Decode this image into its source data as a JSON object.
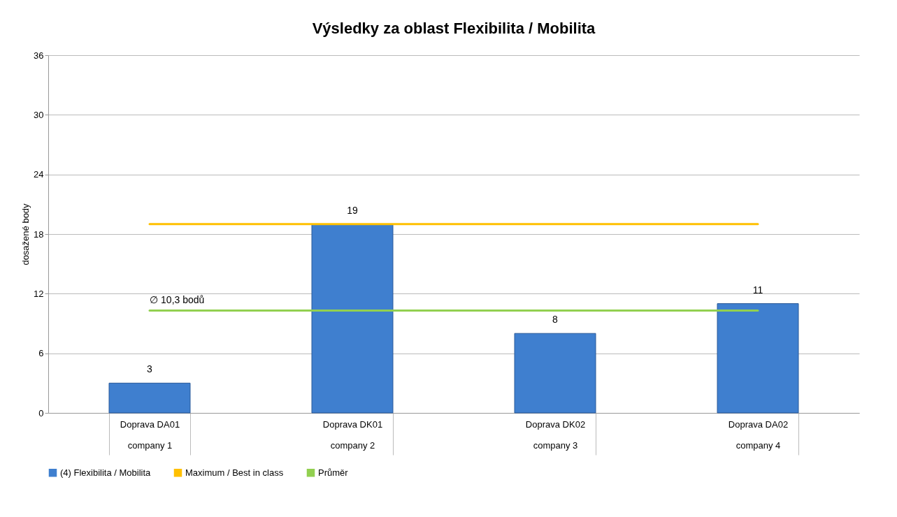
{
  "chart_data": {
    "type": "bar",
    "title": "Výsledky za oblast Flexibilita / Mobilita",
    "ylabel": "dosažené body",
    "categories": [
      "Doprava DA01\ncompany 1",
      "Doprava DK01\ncompany 2",
      "Doprava DK02\ncompany 3",
      "Doprava DA02\ncompany 4"
    ],
    "series": [
      {
        "name": "(4) Flexibilita / Mobilita",
        "color": "#3f7fcf",
        "values": [
          3,
          19,
          8,
          11
        ],
        "value_labels": [
          "3",
          "19",
          "8",
          "11"
        ]
      },
      {
        "name": "Maximum / Best in class",
        "type": "line",
        "color": "#ffc000",
        "values": [
          19,
          19,
          19,
          19
        ]
      },
      {
        "name": "Průměr",
        "type": "line",
        "color": "#92d050",
        "values": [
          10.3,
          10.3,
          10.3,
          10.3
        ]
      }
    ],
    "annotations": [
      {
        "text": "∅ 10,3 bodů",
        "x": "Doprava DA01\ncompany 1",
        "y": 10.3
      }
    ],
    "ylim": [
      0,
      36
    ],
    "yticks": [
      0,
      6,
      12,
      18,
      24,
      30,
      36
    ],
    "grid": "y",
    "legend": "bottom"
  }
}
